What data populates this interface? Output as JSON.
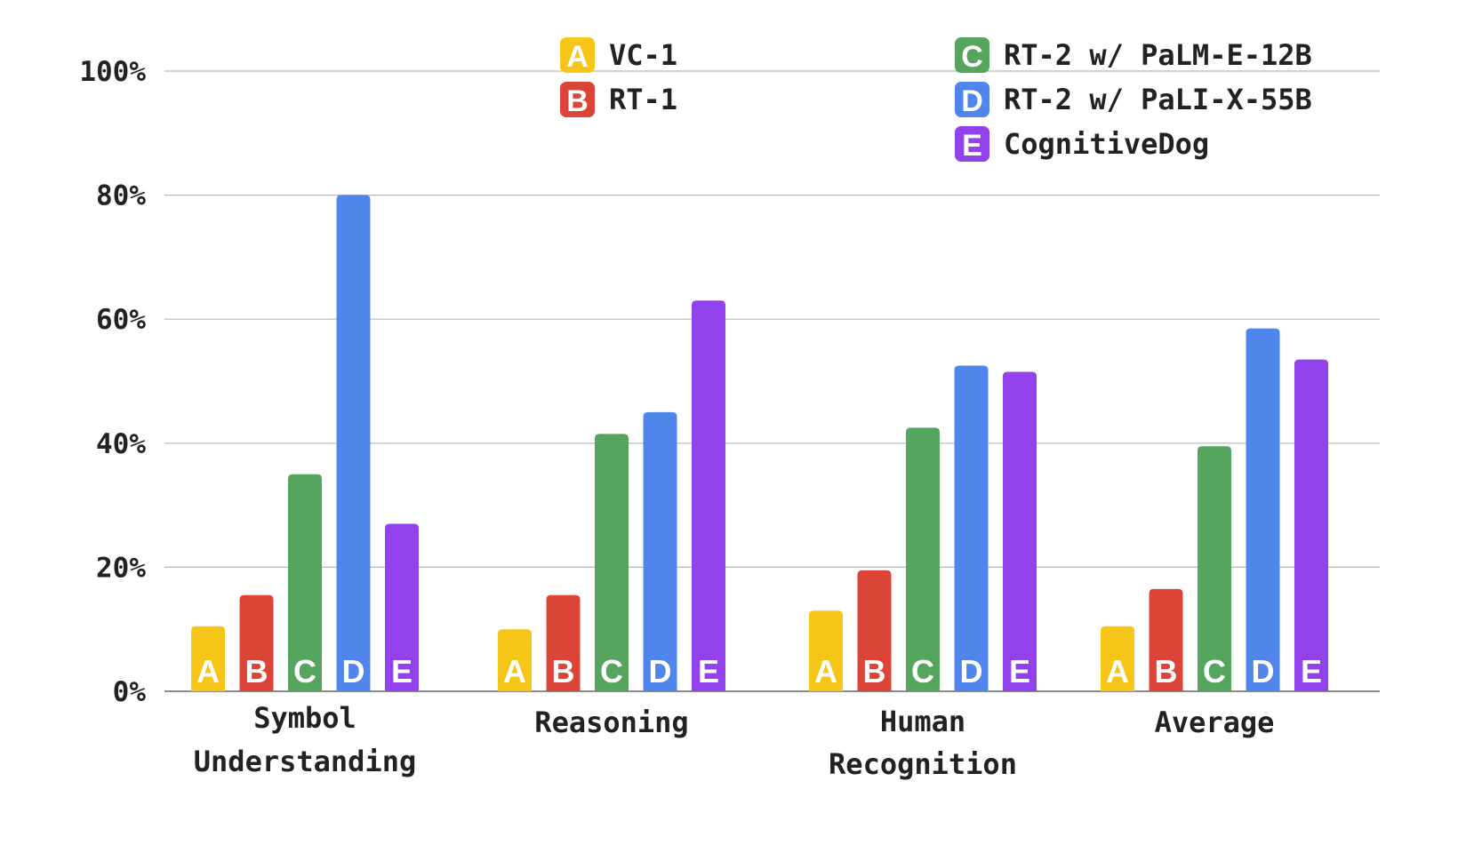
{
  "chart_data": {
    "type": "bar",
    "categories": [
      [
        "Symbol",
        "Understanding"
      ],
      [
        "Reasoning"
      ],
      [
        "Human",
        "Recognition"
      ],
      [
        "Average"
      ]
    ],
    "ylim": [
      0,
      100
    ],
    "yticks": [
      0,
      20,
      40,
      60,
      80,
      100
    ],
    "ytick_labels": [
      "0%",
      "20%",
      "40%",
      "60%",
      "80%",
      "100%"
    ],
    "grid": true,
    "legend_position": "top",
    "series": [
      {
        "key": "A",
        "name": "VC-1",
        "color": "#F5C518",
        "values": [
          10.5,
          10,
          13,
          10.5
        ]
      },
      {
        "key": "B",
        "name": "RT-1",
        "color": "#DB4437",
        "values": [
          15.5,
          15.5,
          19.5,
          16.5
        ]
      },
      {
        "key": "C",
        "name": "RT-2 w/ PaLM-E-12B",
        "color": "#55A55E",
        "values": [
          35,
          41.5,
          42.5,
          39.5
        ]
      },
      {
        "key": "D",
        "name": "RT-2 w/ PaLI-X-55B",
        "color": "#5085EC",
        "values": [
          80,
          45,
          52.5,
          58.5
        ]
      },
      {
        "key": "E",
        "name": "CognitiveDog",
        "color": "#9142EC",
        "values": [
          27,
          63,
          51.5,
          53.5
        ]
      }
    ]
  }
}
